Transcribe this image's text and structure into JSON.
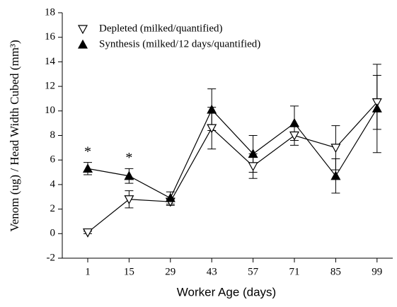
{
  "chart_data": {
    "type": "line",
    "x_label": "Worker Age (days)",
    "y_label": "Venom (ug) / Head Width Cubed (mm³)",
    "categories": [
      "1",
      "15",
      "29",
      "43",
      "57",
      "71",
      "85",
      "99"
    ],
    "series": [
      {
        "name": "Depleted (milked/quantified)",
        "color": "#000000",
        "marker": "triangle-down-open",
        "values": [
          0.1,
          2.8,
          2.6,
          8.6,
          5.5,
          8.0,
          7.0,
          10.7
        ],
        "errors": [
          0.1,
          0.7,
          0.3,
          1.7,
          1.0,
          0.8,
          1.8,
          2.2
        ]
      },
      {
        "name": "Synthesis (milked/12 days/quantified)",
        "color": "#000000",
        "marker": "triangle-up",
        "values": [
          5.3,
          4.7,
          2.9,
          10.1,
          6.5,
          9.0,
          4.7,
          10.2
        ],
        "errors": [
          0.5,
          0.6,
          0.5,
          1.7,
          1.5,
          1.4,
          1.4,
          3.6
        ]
      }
    ],
    "annotations": [
      "*",
      "*"
    ],
    "ylim": [
      -2,
      18
    ],
    "yticks": [
      -2,
      0,
      2,
      4,
      6,
      8,
      10,
      12,
      14,
      16,
      18
    ],
    "legend": "upper left"
  }
}
